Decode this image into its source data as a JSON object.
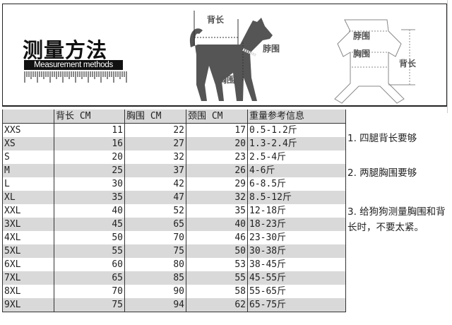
{
  "header": {
    "title": "测量方法",
    "subtitle": "Measurement methods",
    "dog_labels": {
      "back": "背长",
      "neck": "脖围",
      "chest": "胸围"
    },
    "garment_labels": {
      "neck": "脖围",
      "chest": "胸围",
      "back": "背长"
    }
  },
  "table": {
    "columns": [
      "",
      "背长 CM",
      "胸围 CM",
      "颈围 CM",
      "重量参考信息"
    ],
    "rows": [
      [
        "XXS",
        "11",
        "22",
        "17",
        "0.5-1.2斤"
      ],
      [
        "XS",
        "16",
        "27",
        "20",
        "1.3-2.4斤"
      ],
      [
        "S",
        "20",
        "32",
        "23",
        "2.5-4斤"
      ],
      [
        "M",
        "25",
        "37",
        "26",
        "4-6斤"
      ],
      [
        "L",
        "30",
        "42",
        "29",
        "6-8.5斤"
      ],
      [
        "XL",
        "35",
        "47",
        "32",
        "8.5-12斤"
      ],
      [
        "XXL",
        "40",
        "52",
        "35",
        "12-18斤"
      ],
      [
        "3XL",
        "45",
        "65",
        "40",
        "18-23斤"
      ],
      [
        "4XL",
        "50",
        "70",
        "46",
        "23-30斤"
      ],
      [
        "5XL",
        "55",
        "75",
        "50",
        "30-38斤"
      ],
      [
        "6XL",
        "60",
        "80",
        "53",
        "38-45斤"
      ],
      [
        "7XL",
        "65",
        "85",
        "55",
        "45-55斤"
      ],
      [
        "8XL",
        "70",
        "90",
        "58",
        "55-65斤"
      ],
      [
        "9XL",
        "75",
        "94",
        "62",
        "65-75斤"
      ]
    ]
  },
  "notes": [
    "1. 四腿背长要够",
    "2. 两腿胸围要够",
    "3. 给狗狗测量胸围和背长时，不要太紧。"
  ],
  "colors": {
    "row_shade": "#d9d9d9",
    "silhouette": "#555555"
  }
}
